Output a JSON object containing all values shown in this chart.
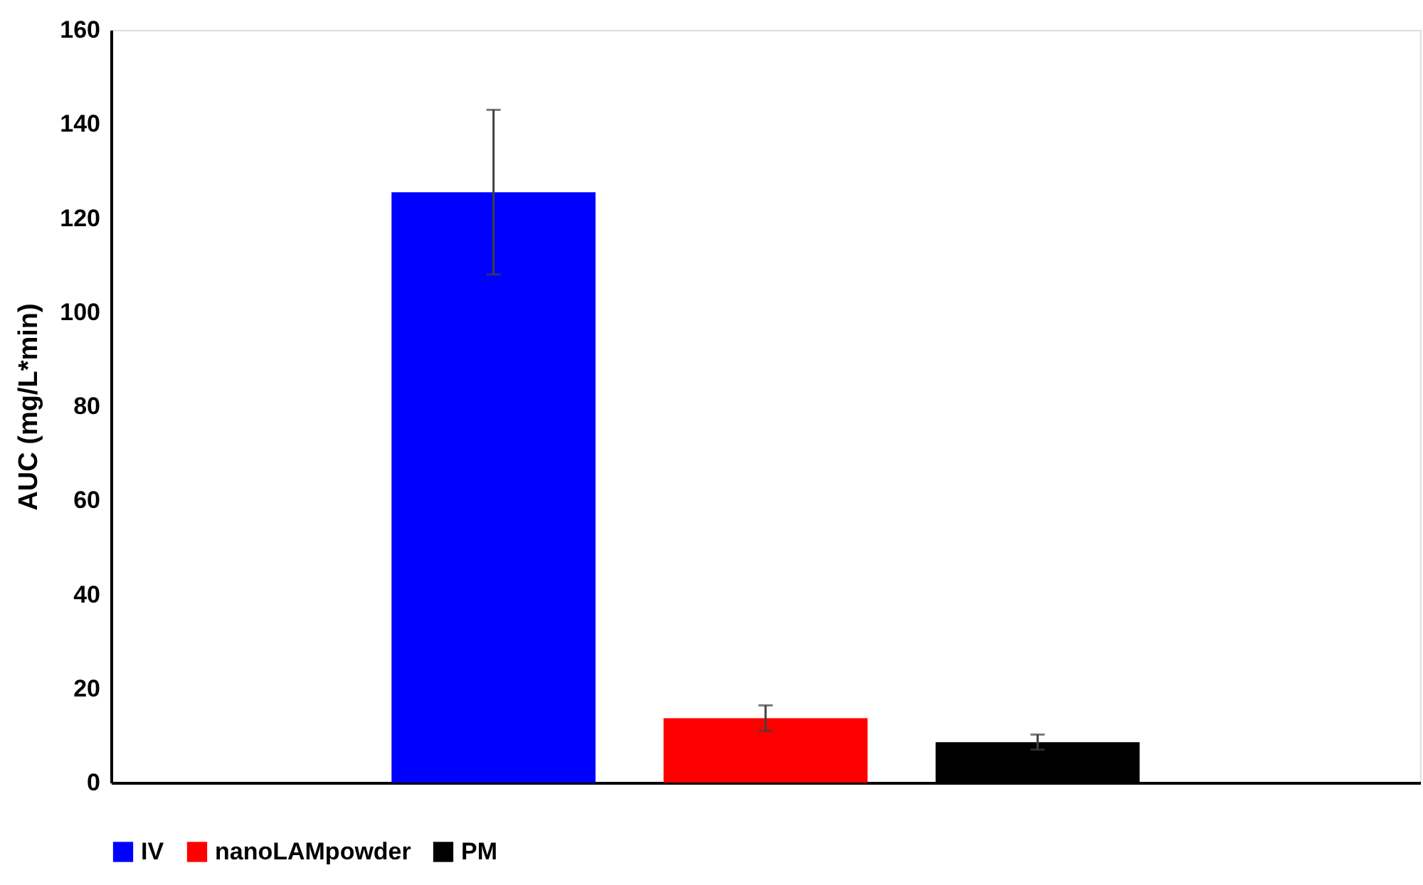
{
  "chart_data": {
    "type": "bar",
    "ylabel": "AUC (mg/L*min)",
    "categories": [
      null
    ],
    "series": [
      {
        "name": "IV",
        "color": "#0000ff",
        "values": [
          125.5
        ],
        "errors": [
          17.5
        ]
      },
      {
        "name": "nanoLAMpowder",
        "color": "#ff0000",
        "values": [
          13.7
        ],
        "errors": [
          2.7
        ]
      },
      {
        "name": "PM",
        "color": "#000000",
        "values": [
          8.6
        ],
        "errors": [
          1.6
        ]
      }
    ],
    "ylim": [
      0,
      160
    ],
    "yticks": [
      0,
      20,
      40,
      60,
      80,
      100,
      120,
      140,
      160
    ],
    "grid": false,
    "legend": "bottom"
  }
}
